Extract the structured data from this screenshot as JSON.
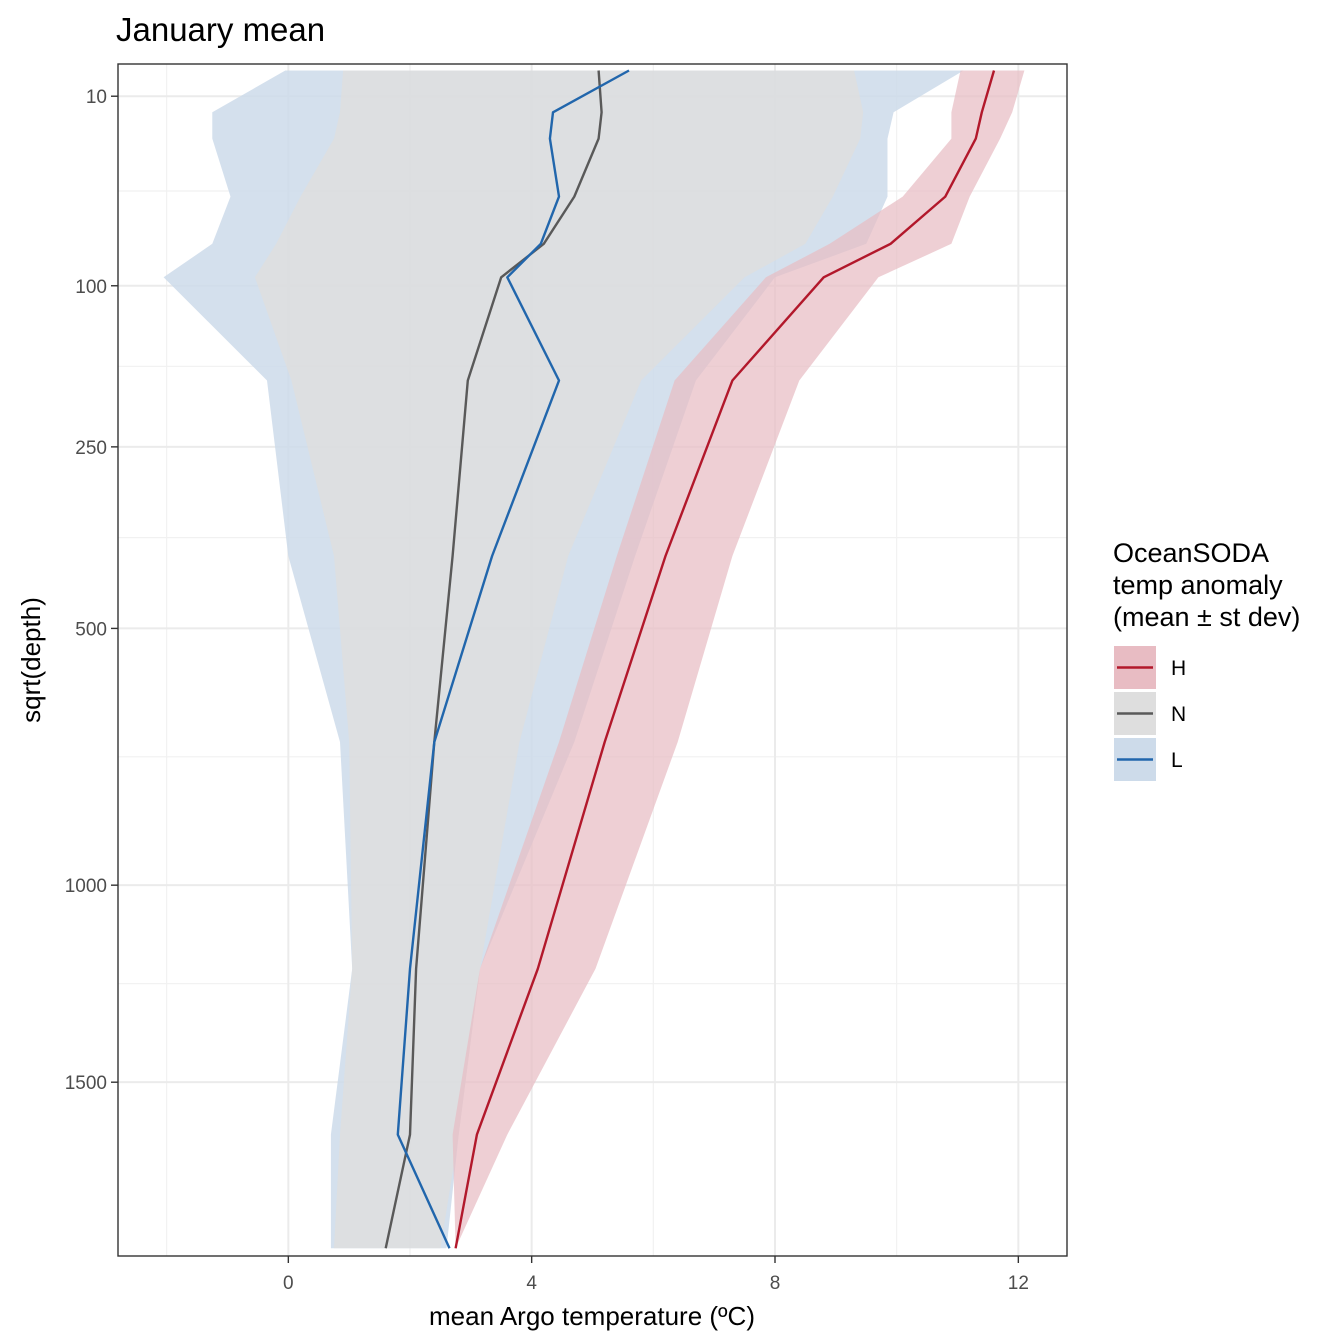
{
  "chart_data": {
    "type": "line",
    "title": "January mean",
    "xlabel": "mean Argo temperature (ºC)",
    "ylabel": "sqrt(depth)",
    "xlim": [
      -2.8,
      12.8
    ],
    "xticks": [
      0,
      4,
      8,
      12
    ],
    "ylim_sqrt_depth": [
      2.0,
      45.0
    ],
    "yticks": [
      10,
      100,
      250,
      500,
      1000,
      1500
    ],
    "y_scale": "sqrt",
    "y_reversed": true,
    "grid": true,
    "legend": {
      "title_lines": [
        "OceanSODA",
        "temp anomaly",
        "(mean ± st dev)"
      ],
      "placement": "right"
    },
    "depth_levels": [
      5,
      14,
      22,
      46,
      72,
      94,
      180,
      390,
      700,
      1200,
      1650,
      2000
    ],
    "series": [
      {
        "name": "H",
        "color": "#b2182b",
        "fill": "#e8bcc3",
        "mean": [
          11.6,
          11.4,
          11.3,
          10.8,
          9.9,
          8.8,
          7.3,
          6.2,
          5.2,
          4.1,
          3.1,
          2.75
        ],
        "lower": [
          11.05,
          10.9,
          10.9,
          10.1,
          8.9,
          7.85,
          6.35,
          5.4,
          4.45,
          3.15,
          2.7,
          2.75
        ],
        "upper": [
          12.1,
          11.9,
          11.7,
          11.2,
          10.9,
          9.7,
          8.4,
          7.3,
          6.4,
          5.05,
          3.6,
          2.75
        ]
      },
      {
        "name": "N",
        "color": "#595959",
        "fill": "#dedede",
        "mean": [
          5.1,
          5.15,
          5.1,
          4.7,
          4.2,
          3.5,
          2.95,
          2.7,
          2.4,
          2.1,
          2.0,
          1.6
        ],
        "lower": [
          0.9,
          0.85,
          0.75,
          0.2,
          -0.2,
          -0.55,
          0.05,
          0.75,
          1.0,
          1.05,
          0.85,
          0.75
        ],
        "upper": [
          9.3,
          9.45,
          9.4,
          8.95,
          8.5,
          7.5,
          5.8,
          4.6,
          3.8,
          3.15,
          2.8,
          2.5
        ]
      },
      {
        "name": "L",
        "color": "#2166ac",
        "fill": "#cddbea",
        "mean": [
          5.6,
          4.35,
          4.3,
          4.45,
          4.15,
          3.6,
          4.45,
          3.35,
          2.4,
          2.0,
          1.8,
          2.65
        ],
        "lower": [
          -0.05,
          -1.25,
          -1.25,
          -0.95,
          -1.25,
          -2.05,
          -0.35,
          0.0,
          0.85,
          1.05,
          0.7,
          0.7
        ],
        "upper": [
          11.1,
          9.95,
          9.85,
          9.85,
          9.5,
          8.0,
          6.7,
          5.7,
          4.7,
          3.15,
          2.8,
          2.6
        ]
      }
    ]
  }
}
